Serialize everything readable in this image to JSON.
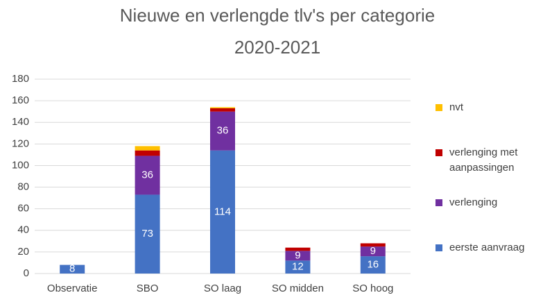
{
  "chart_data": {
    "type": "stacked_bar",
    "title": "Nieuwe en verlengde tlv's per categorie",
    "subtitle": "2020-2021",
    "categories": [
      "Observatie",
      "SBO",
      "SO laag",
      "SO midden",
      "SO hoog"
    ],
    "series": [
      {
        "name": "eerste aanvraag",
        "color": "#4472c4",
        "values": [
          8,
          73,
          114,
          12,
          16
        ],
        "data_labels": true
      },
      {
        "name": "verlenging",
        "color": "#7030a0",
        "values": [
          null,
          36,
          36,
          9,
          9
        ],
        "data_labels": true
      },
      {
        "name": "verlenging met aanpassingen",
        "color": "#c00000",
        "values": [
          null,
          5,
          3,
          3,
          3
        ],
        "data_labels": false
      },
      {
        "name": "nvt",
        "color": "#ffc000",
        "values": [
          null,
          4,
          1,
          null,
          null
        ],
        "data_labels": false
      }
    ],
    "ylim": [
      0,
      180
    ],
    "yticks": [
      0,
      20,
      40,
      60,
      80,
      100,
      120,
      140,
      160,
      180
    ],
    "grid": true,
    "legend": "right"
  }
}
